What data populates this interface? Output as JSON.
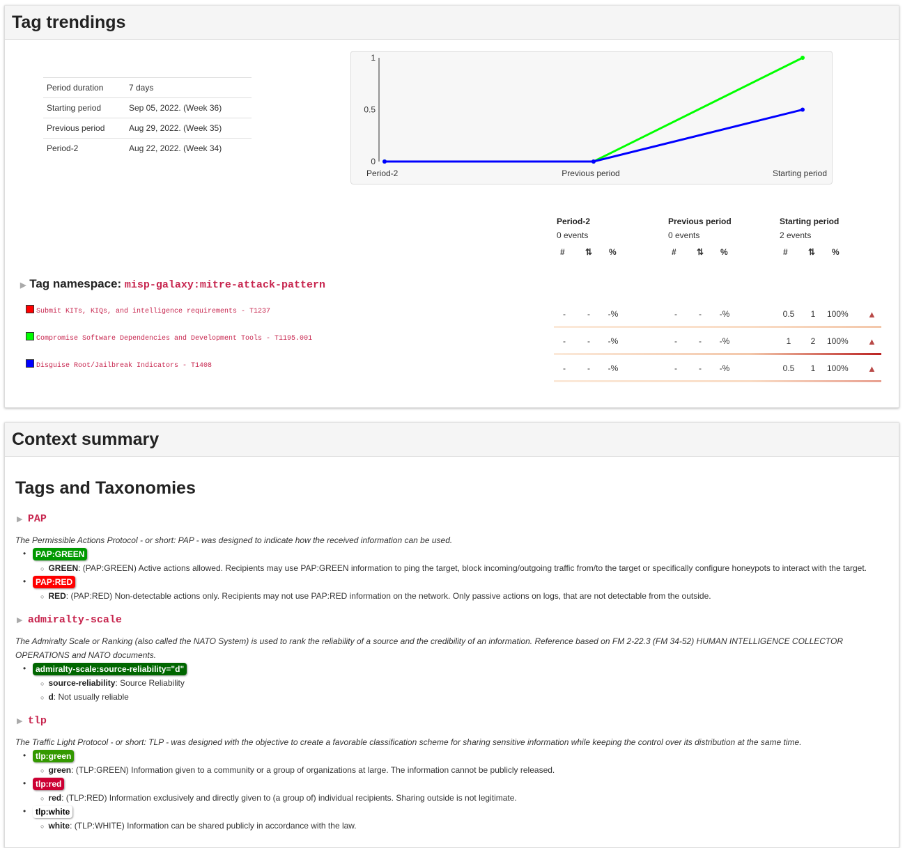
{
  "trend": {
    "title": "Tag trendings",
    "info": [
      {
        "label": "Period duration",
        "value": "7 days"
      },
      {
        "label": "Starting period",
        "value": "Sep 05, 2022. (Week 36)"
      },
      {
        "label": "Previous period",
        "value": "Aug 29, 2022. (Week 35)"
      },
      {
        "label": "Period-2",
        "value": "Aug 22, 2022. (Week 34)"
      }
    ],
    "periods": [
      {
        "name": "Period-2",
        "events": "0 events"
      },
      {
        "name": "Previous period",
        "events": "0 events"
      },
      {
        "name": "Starting period",
        "events": "2 events"
      }
    ],
    "col_headers": [
      "#",
      "⇅",
      "%"
    ],
    "namespace_label": "Tag namespace:",
    "namespace_value": "misp-galaxy:mitre-attack-pattern",
    "rows": [
      {
        "name": "Submit KITs, KIQs, and intelligence requirements - T1237",
        "color": "#ff0000",
        "p2": [
          "-",
          "-",
          "-%"
        ],
        "prev": [
          "-",
          "-",
          "-%"
        ],
        "start": [
          "0.5",
          "1",
          "100%"
        ],
        "trend": "▲"
      },
      {
        "name": "Compromise Software Dependencies and Development Tools - T1195.001",
        "color": "#00ff00",
        "p2": [
          "-",
          "-",
          "-%"
        ],
        "prev": [
          "-",
          "-",
          "-%"
        ],
        "start": [
          "1",
          "2",
          "100%"
        ],
        "trend": "▲"
      },
      {
        "name": "Disguise Root/Jailbreak Indicators - T1408",
        "color": "#0000ff",
        "p2": [
          "-",
          "-",
          "-%"
        ],
        "prev": [
          "-",
          "-",
          "-%"
        ],
        "start": [
          "0.5",
          "1",
          "100%"
        ],
        "trend": "▲"
      }
    ]
  },
  "chart_data": {
    "type": "line",
    "categories": [
      "Period-2",
      "Previous period",
      "Starting period"
    ],
    "series": [
      {
        "color": "#00ff00",
        "values": [
          0,
          0,
          1
        ]
      },
      {
        "color": "#0000ff",
        "values": [
          0,
          0,
          0.5
        ]
      }
    ],
    "y_ticks": [
      "0",
      "0.5",
      "1"
    ],
    "ylim": [
      0,
      1
    ]
  },
  "context": {
    "title": "Context summary",
    "heading": "Tags and Taxonomies",
    "pap": {
      "name": "PAP",
      "desc": "The Permissible Actions Protocol - or short: PAP - was designed to indicate how the received information can be used.",
      "green_tag": "PAP:GREEN",
      "green_key": "GREEN",
      "green_text": ": (PAP:GREEN) Active actions allowed. Recipients may use PAP:GREEN information to ping the target, block incoming/outgoing traffic from/to the target or specifically configure honeypots to interact with the target.",
      "red_tag": "PAP:RED",
      "red_key": "RED",
      "red_text": ": (PAP:RED) Non-detectable actions only. Recipients may not use PAP:RED information on the network. Only passive actions on logs, that are not detectable from the outside.",
      "green_color": "#009900",
      "red_color": "#ff0000"
    },
    "admiralty": {
      "name": "admiralty-scale",
      "desc1": "The Admiralty Scale or Ranking (also called the NATO System) is used to rank the reliability of a source and the credibility of an information. Reference based on FM 2-22.3 (FM 34-52) HUMAN INTELLIGENCE COLLECTOR",
      "desc2": "OPERATIONS and NATO documents.",
      "tag": "admiralty-scale:source-reliability=\"d\"",
      "k1": "source-reliability",
      "t1": ": Source Reliability",
      "k2": "d",
      "t2": ": Not usually reliable",
      "color": "#006600"
    },
    "tlp": {
      "name": "tlp",
      "desc": "The Traffic Light Protocol - or short: TLP - was designed with the objective to create a favorable classification scheme for sharing sensitive information while keeping the control over its distribution at the same time.",
      "green_tag": "tlp:green",
      "green_key": "green",
      "green_text": ": (TLP:GREEN) Information given to a community or a group of organizations at large. The information cannot be publicly released.",
      "red_tag": "tlp:red",
      "red_key": "red",
      "red_text": ": (TLP:RED) Information exclusively and directly given to (a group of) individual recipients. Sharing outside is not legitimate.",
      "white_tag": "tlp:white",
      "white_key": "white",
      "white_text": ": (TLP:WHITE) Information can be shared publicly in accordance with the law.",
      "green_color": "#339900",
      "red_color": "#cc0033",
      "white_color": "#ffffff"
    },
    "bullet": "•",
    "sub_bullet": "○",
    "toggle": "▶"
  }
}
